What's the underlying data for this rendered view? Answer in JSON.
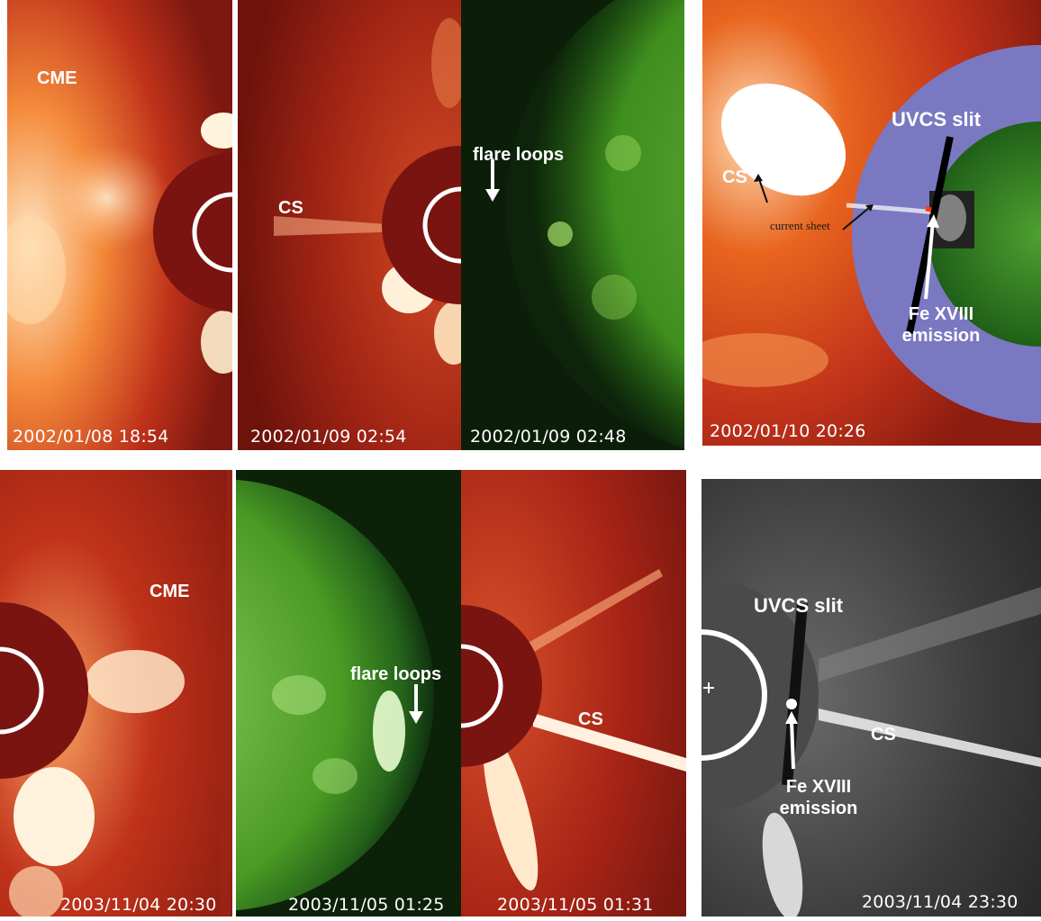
{
  "panels": {
    "p1": {
      "timestamp": "2002/01/08 18:54",
      "labels": {
        "cme": "CME"
      }
    },
    "p2": {
      "timestamp": "2002/01/09 02:54",
      "labels": {
        "cs": "CS"
      }
    },
    "p3": {
      "timestamp": "2002/01/09 02:48",
      "labels": {
        "flare": "flare loops"
      }
    },
    "p4": {
      "timestamp": "2002/01/10 20:26",
      "labels": {
        "uvcs": "UVCS slit",
        "cs": "CS",
        "current_sheet": "current sheet",
        "fe_line1": "Fe XVIII",
        "fe_line2": "emission"
      }
    },
    "p5": {
      "timestamp": "2003/11/04 20:30",
      "labels": {
        "cme": "CME"
      }
    },
    "p6": {
      "timestamp": "2003/11/05 01:25",
      "labels": {
        "flare": "flare loops"
      }
    },
    "p7": {
      "timestamp": "2003/11/05 01:31",
      "labels": {
        "cs": "CS"
      }
    },
    "p8": {
      "timestamp": "2003/11/04 23:30",
      "labels": {
        "uvcs": "UVCS slit",
        "cs": "CS",
        "fe_line1": "Fe XVIII",
        "fe_line2": "emission"
      }
    }
  },
  "colors": {
    "lasco_red": "#c0321a",
    "occulter": "#7a1410",
    "eit_green": "#3f8f1f",
    "uvcs_blue": "#7b78c2",
    "gray_bg": "#3a3a3a"
  }
}
